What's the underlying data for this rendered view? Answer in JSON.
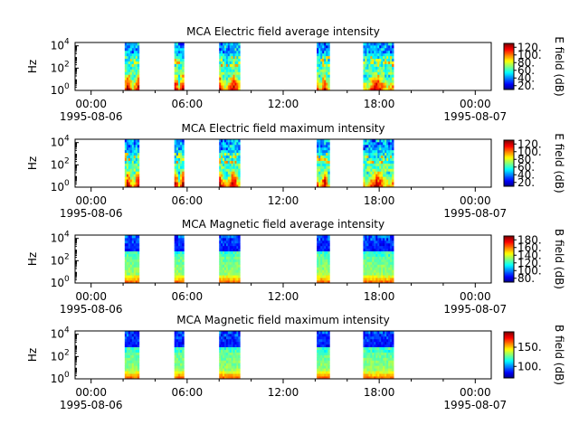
{
  "panels": [
    {
      "title": "MCA  Electric field average intensity",
      "ylabel": "Hz",
      "cbar_label": "E field (dB)",
      "cbar_ticks": [
        20,
        40,
        60,
        80,
        100,
        120
      ],
      "cbar_range": [
        10,
        130
      ],
      "kind": "electric"
    },
    {
      "title": "MCA  Electric field maximum intensity",
      "ylabel": "Hz",
      "cbar_label": "E field (dB)",
      "cbar_ticks": [
        20,
        40,
        60,
        80,
        100,
        120
      ],
      "cbar_range": [
        10,
        130
      ],
      "kind": "electric"
    },
    {
      "title": "MCA  Magnetic field average intensity",
      "ylabel": "Hz",
      "cbar_label": "B field (dB)",
      "cbar_ticks": [
        80,
        100,
        120,
        140,
        160,
        180
      ],
      "cbar_range": [
        70,
        190
      ],
      "kind": "magnetic"
    },
    {
      "title": "MCA  Magnetic field maximum intensity",
      "ylabel": "Hz",
      "cbar_label": "B field (dB)",
      "cbar_ticks": [
        100,
        150
      ],
      "cbar_range": [
        70,
        190
      ],
      "kind": "magnetic"
    }
  ],
  "chart_data": {
    "type": "heatmap",
    "x_range_hours": [
      -1,
      25
    ],
    "x_ticks": [
      {
        "time": "00:00",
        "date": "1995-08-06"
      },
      {
        "time": "06:00",
        "date": ""
      },
      {
        "time": "12:00",
        "date": ""
      },
      {
        "time": "18:00",
        "date": ""
      },
      {
        "time": "00:00",
        "date": "1995-08-07"
      }
    ],
    "y_scale": "log",
    "y_ticks": [
      "10^0",
      "10^2",
      "10^4"
    ],
    "y_range_log10": [
      0,
      4.3
    ],
    "colormap": "jet",
    "data_intervals_hours": [
      {
        "start": 2.1,
        "end": 3.0
      },
      {
        "start": 5.2,
        "end": 5.8
      },
      {
        "start": 8.0,
        "end": 9.3
      },
      {
        "start": 14.1,
        "end": 14.9
      },
      {
        "start": 17.0,
        "end": 18.9
      }
    ]
  }
}
